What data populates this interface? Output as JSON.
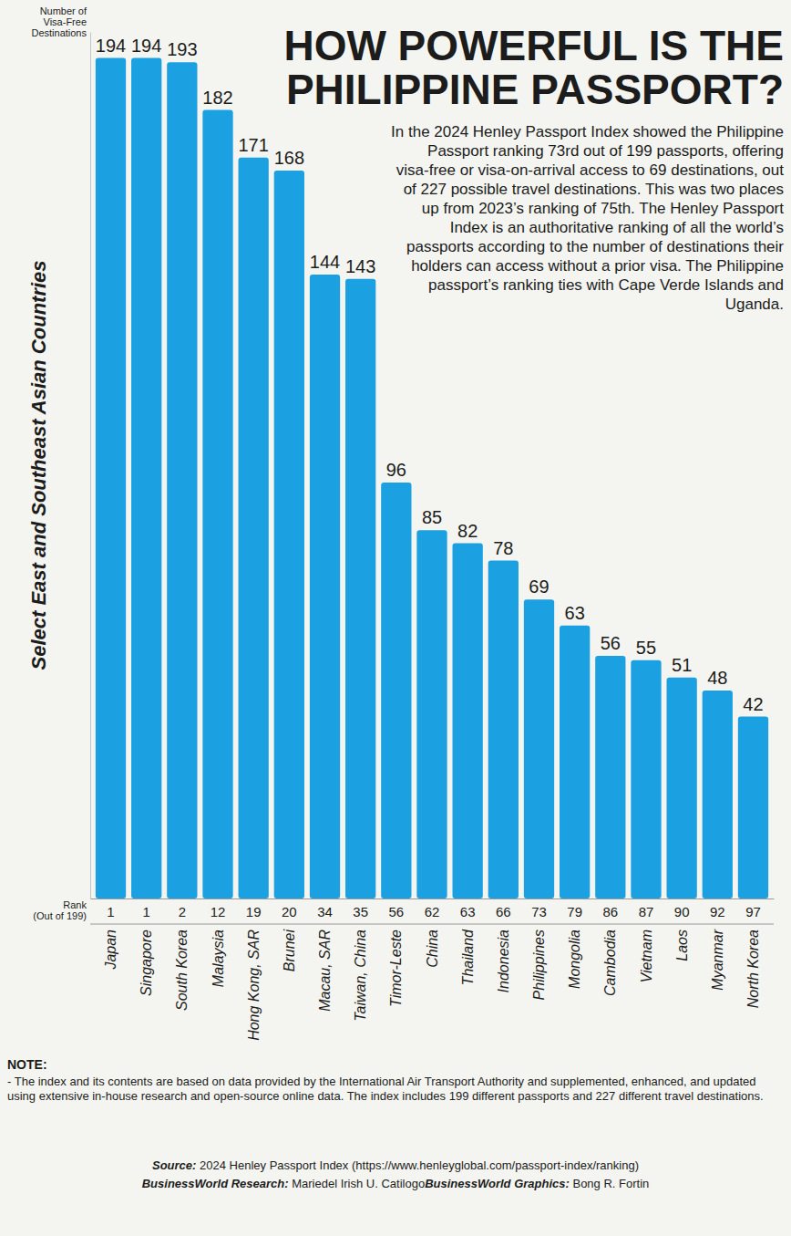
{
  "chart_data": {
    "type": "bar",
    "title": "HOW POWERFUL IS THE PHILIPPINE PASSPORT?",
    "subtitle": "In the 2024 Henley Passport Index showed the Philippine Passport ranking 73rd out of 199 passports, offering visa-free or visa-on-arrival access to 69 destinations, out of 227 possible travel destinations. This was two places up from 2023’s ranking of 75th. The Henley Passport Index is an authoritative ranking of all the world’s passports according to the number of destinations their holders can access without a prior visa. The Philippine passport’s ranking ties with Cape Verde Islands and Uganda.",
    "xlabel": "Select East and Southeast Asian Countries",
    "ylabel": "Number of Visa-Free Destinations",
    "categories": [
      "Japan",
      "Singapore",
      "South Korea",
      "Malaysia",
      "Hong Kong, SAR",
      "Brunei",
      "Macau, SAR",
      "Taiwan, China",
      "Timor-Leste",
      "China",
      "Thailand",
      "Indonesia",
      "Philippines",
      "Mongolia",
      "Cambodia",
      "Vietnam",
      "Laos",
      "Myanmar",
      "North Korea"
    ],
    "values": [
      194,
      194,
      193,
      182,
      171,
      168,
      144,
      143,
      96,
      85,
      82,
      78,
      69,
      63,
      56,
      55,
      51,
      48,
      42
    ],
    "rank_label": "Rank (Out of 199)",
    "ranks": [
      1,
      1,
      2,
      12,
      19,
      20,
      34,
      35,
      56,
      62,
      63,
      66,
      73,
      79,
      86,
      87,
      90,
      92,
      97
    ],
    "color": "#1ba1e2",
    "ylim": [
      0,
      200
    ],
    "data_labels": true,
    "tick_labels": "x",
    "note_label": "NOTE:",
    "note": "- The index and its contents are based on data provided by the International Air Transport Authority and supplemented, enhanced, and updated using extensive in-house research and open-source online data. The index includes 199 different passports and 227 different travel destinations.",
    "source": "Source: 2024 Henley Passport Index (https://www.henleyglobal.com/passport-index/ranking)",
    "credits": [
      "BusinessWorld Research: Mariedel Irish U. Catilogo",
      "BusinessWorld Graphics: Bong R. Fortin"
    ]
  }
}
